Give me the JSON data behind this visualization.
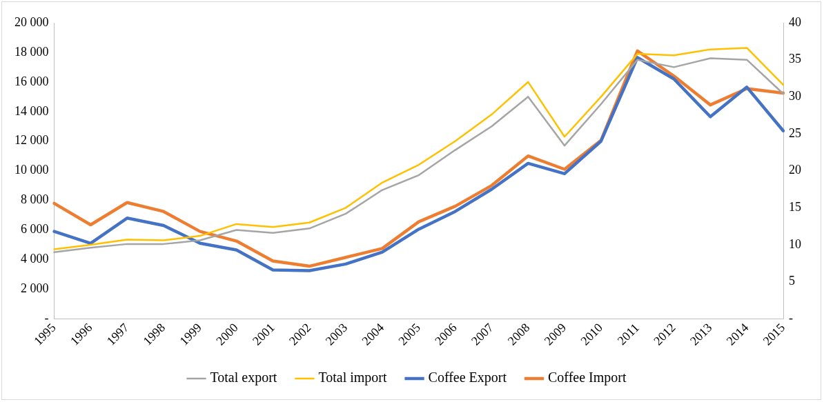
{
  "chart_data": {
    "type": "line",
    "categories": [
      "1995",
      "1996",
      "1997",
      "1998",
      "1999",
      "2000",
      "2001",
      "2002",
      "2003",
      "2004",
      "2005",
      "2006",
      "2007",
      "2008",
      "2009",
      "2010",
      "2011",
      "2012",
      "2013",
      "2014",
      "2015"
    ],
    "series": [
      {
        "name": "Total export",
        "color": "#a5a5a5",
        "values": [
          4500,
          4800,
          5050,
          5050,
          5300,
          6000,
          5800,
          6100,
          7100,
          8700,
          9700,
          11400,
          13000,
          15000,
          11700,
          14500,
          17500,
          17000,
          17600,
          17500,
          15200
        ]
      },
      {
        "name": "Total import",
        "color": "#ffc000",
        "values": [
          4700,
          5000,
          5350,
          5300,
          5600,
          6400,
          6200,
          6500,
          7500,
          9200,
          10400,
          12000,
          13800,
          16000,
          12300,
          15000,
          17900,
          17800,
          18200,
          18300,
          15800
        ]
      },
      {
        "name": "Coffee Export",
        "color": "#4472c4",
        "axis": "y2",
        "values": [
          11.8,
          10.2,
          13.6,
          12.6,
          10.2,
          9.3,
          6.6,
          6.5,
          7.4,
          9.0,
          12.1,
          14.5,
          17.5,
          21.0,
          19.6,
          24.0,
          35.3,
          32.4,
          27.3,
          31.3,
          25.4
        ]
      },
      {
        "name": "Coffee Import",
        "color": "#ed7d31",
        "axis": "y2",
        "values": [
          15.6,
          12.7,
          15.7,
          14.5,
          11.8,
          10.5,
          7.8,
          7.1,
          8.3,
          9.5,
          13.1,
          15.2,
          18.0,
          22.0,
          20.2,
          24.1,
          36.2,
          32.8,
          28.9,
          31.1,
          30.5
        ]
      }
    ],
    "ylim": [
      0,
      20000
    ],
    "yticks": [
      {
        "value": 0,
        "label": "-"
      },
      {
        "value": 2000,
        "label": "2 000"
      },
      {
        "value": 4000,
        "label": "4 000"
      },
      {
        "value": 6000,
        "label": "6 000"
      },
      {
        "value": 8000,
        "label": "8 000"
      },
      {
        "value": 10000,
        "label": "10 000"
      },
      {
        "value": 12000,
        "label": "12 000"
      },
      {
        "value": 14000,
        "label": "14 000"
      },
      {
        "value": 16000,
        "label": "16 000"
      },
      {
        "value": 18000,
        "label": "18 000"
      },
      {
        "value": 20000,
        "label": "20 000"
      }
    ],
    "y2lim": [
      0,
      40
    ],
    "y2ticks": [
      {
        "value": 0,
        "label": "-"
      },
      5,
      10,
      15,
      20,
      25,
      30,
      35,
      40
    ],
    "grid": false,
    "legend": "bottom",
    "marker": "none",
    "line_style": "solid"
  }
}
